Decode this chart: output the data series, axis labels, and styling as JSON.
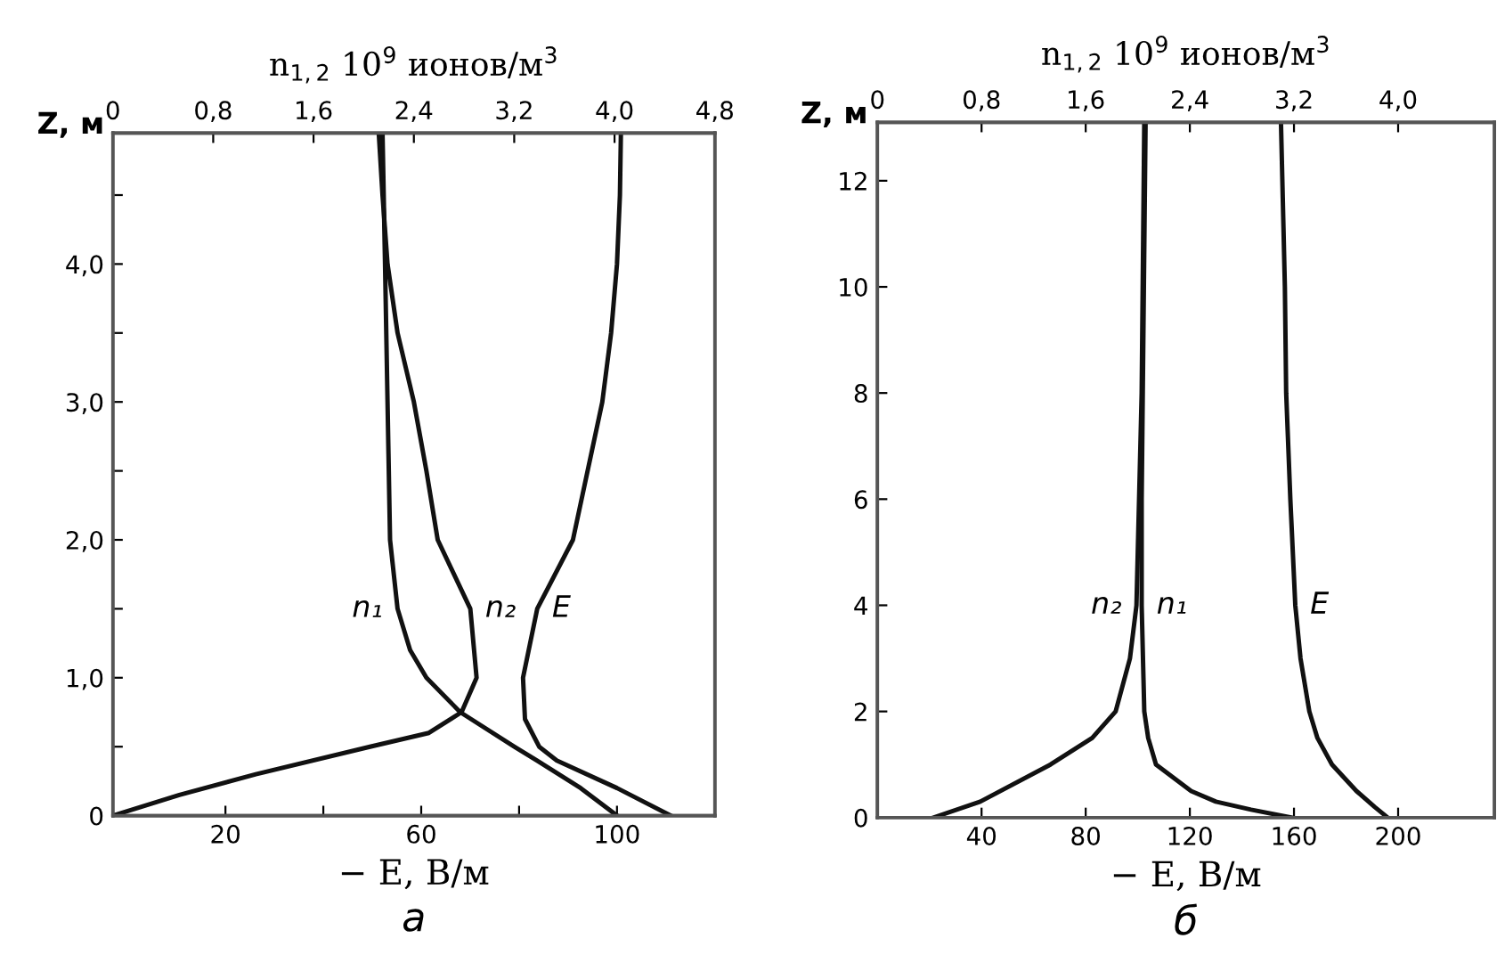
{
  "chart_data": [
    {
      "type": "line",
      "xlabel": "− E, В/м",
      "x2label": "n$_{1,2}$ 10$^{9}$ ионов/м$^{3}$",
      "ylabel": "Z, м",
      "annotations": [
        "а"
      ],
      "xlim": [
        -3,
        120
      ],
      "xticks": [
        20,
        {
          "value": 40,
          "label": null
        },
        60,
        {
          "value": 80,
          "label": null
        },
        100
      ],
      "x2lim": [
        0,
        4.8
      ],
      "x2ticks": [
        0,
        {
          "value": 0.8,
          "label": "0,8"
        },
        {
          "value": 1.6,
          "label": "1,6"
        },
        {
          "value": 2.4,
          "label": "2,4"
        },
        {
          "value": 3.2,
          "label": "3,2"
        },
        {
          "value": 4.0,
          "label": "4,0"
        },
        {
          "value": 4.8,
          "label": "4,8"
        }
      ],
      "ylim": [
        0,
        4.95
      ],
      "yticks": [
        0,
        {
          "value": 0.5,
          "label": null
        },
        {
          "value": 1.0,
          "label": "1,0"
        },
        {
          "value": 1.5,
          "label": null
        },
        {
          "value": 2.0,
          "label": "2,0"
        },
        {
          "value": 2.5,
          "label": null
        },
        {
          "value": 3.0,
          "label": "3,0"
        },
        {
          "value": 3.5,
          "label": null
        },
        {
          "value": 4.0,
          "label": "4,0"
        },
        {
          "value": 4.5,
          "label": null
        }
      ],
      "grid": false,
      "legend": false,
      "series": [
        {
          "name": "n₁",
          "axis": "x2",
          "color": "#111111",
          "x": [
            4.02,
            3.73,
            3.38,
            3.2,
            2.77,
            2.5,
            2.37,
            2.27,
            2.21,
            2.19,
            2.17,
            2.15
          ],
          "values": [
            0,
            0.2,
            0.4,
            0.5,
            0.75,
            1.0,
            1.2,
            1.5,
            2.0,
            3.0,
            4.0,
            4.95
          ]
        },
        {
          "name": "n₂",
          "axis": "x2",
          "color": "#111111",
          "x": [
            0,
            0.53,
            1.14,
            2.05,
            2.52,
            2.78,
            2.9,
            2.85,
            2.59,
            2.5,
            2.4,
            2.27,
            2.19,
            2.15,
            2.12
          ],
          "values": [
            0,
            0.15,
            0.3,
            0.5,
            0.6,
            0.75,
            1.0,
            1.5,
            2.0,
            2.5,
            3.0,
            3.5,
            4.0,
            4.5,
            4.95
          ]
        },
        {
          "name": "E",
          "color": "#111111",
          "x": [
            111,
            100,
            87.7,
            84.1,
            81.2,
            80.8,
            83.7,
            91,
            94,
            97,
            98.8,
            100,
            100.6,
            100.8
          ],
          "values": [
            0,
            0.2,
            0.4,
            0.5,
            0.7,
            1.0,
            1.5,
            2.0,
            2.5,
            3.0,
            3.5,
            4.0,
            4.5,
            4.95
          ]
        }
      ]
    },
    {
      "type": "line",
      "xlabel": "− E, В/м",
      "x2label": "n$_{1,2}$ 10$^{9}$ ионов/м$^{3}$",
      "ylabel": "Z, м",
      "annotations": [
        "б"
      ],
      "xlim": [
        0,
        237
      ],
      "xticks": [
        40,
        80,
        120,
        160,
        200
      ],
      "x2lim": [
        0,
        4.74
      ],
      "x2ticks": [
        0,
        {
          "value": 0.8,
          "label": "0,8"
        },
        {
          "value": 1.6,
          "label": "1,6"
        },
        {
          "value": 2.4,
          "label": "2,4"
        },
        {
          "value": 3.2,
          "label": "3,2"
        },
        {
          "value": 4.0,
          "label": "4,0"
        }
      ],
      "ylim": [
        0,
        13.1
      ],
      "yticks": [
        0,
        2,
        4,
        6,
        8,
        10,
        12
      ],
      "grid": false,
      "legend": false,
      "series": [
        {
          "name": "n₂",
          "axis": "x2",
          "color": "#111111",
          "x": [
            0.43,
            0.79,
            1.33,
            1.65,
            1.83,
            1.94,
            1.99,
            2.01,
            2.03,
            2.05
          ],
          "values": [
            0,
            0.3,
            1.0,
            1.5,
            2.0,
            3.0,
            4.0,
            6.0,
            8.0,
            13.1
          ]
        },
        {
          "name": "n₁",
          "axis": "x2",
          "color": "#111111",
          "x": [
            3.18,
            2.87,
            2.6,
            2.41,
            2.14,
            2.08,
            2.05,
            2.03,
            2.03,
            2.06
          ],
          "values": [
            0,
            0.15,
            0.3,
            0.5,
            1.0,
            1.5,
            2.0,
            4.0,
            6.0,
            13.1
          ]
        },
        {
          "name": "E",
          "color": "#111111",
          "x": [
            196,
            191,
            184,
            174.6,
            169,
            165.9,
            162.5,
            160.5,
            158.6,
            157,
            156.5,
            155
          ],
          "values": [
            0,
            0.2,
            0.5,
            1.0,
            1.5,
            2.0,
            3.0,
            4.0,
            6.0,
            8.0,
            10.0,
            13.1
          ]
        }
      ]
    }
  ]
}
